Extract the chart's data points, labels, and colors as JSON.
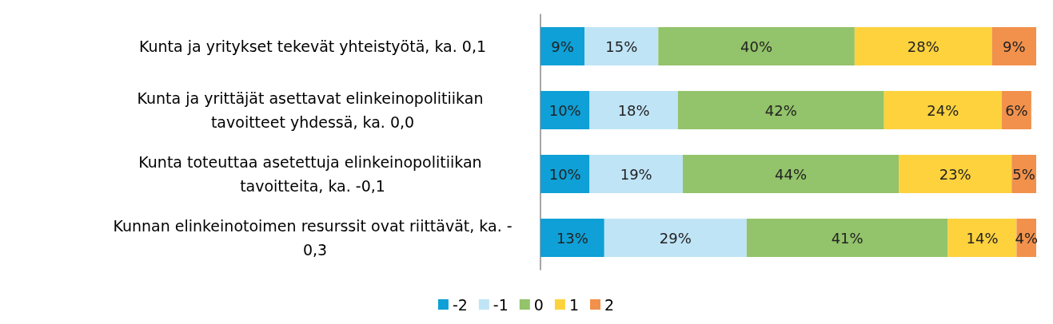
{
  "chart_data": {
    "type": "bar",
    "orientation": "horizontal",
    "stacked": true,
    "legend": "bottom",
    "tick_labels": "y",
    "categories": [
      "Kunta ja yritykset tekevät yhteistyötä, ka. 0,1",
      "Kunta ja yrittäjät asettavat elinkeinopolitiikan tavoitteet yhdessä, ka. 0,0",
      "Kunta toteuttaa asetettuja elinkeinopolitiikan tavoitteita, ka. -0,1",
      "Kunnan elinkeinotoimen resurssit ovat riittävät, ka. - 0,3"
    ],
    "series": [
      {
        "name": "-2",
        "color": "#0ea0d6",
        "values": [
          9,
          10,
          10,
          13
        ],
        "value_labels": [
          "9%",
          "10%",
          "10%",
          "13%"
        ]
      },
      {
        "name": "-1",
        "color": "#bfe4f6",
        "values": [
          15,
          18,
          19,
          29
        ],
        "value_labels": [
          "15%",
          "18%",
          "19%",
          "29%"
        ]
      },
      {
        "name": "0",
        "color": "#93c36a",
        "values": [
          40,
          42,
          44,
          41
        ],
        "value_labels": [
          "40%",
          "42%",
          "44%",
          "41%"
        ]
      },
      {
        "name": "1",
        "color": "#fdd23d",
        "values": [
          28,
          24,
          23,
          14
        ],
        "value_labels": [
          "28%",
          "24%",
          "23%",
          "14%"
        ]
      },
      {
        "name": "2",
        "color": "#f1914b",
        "values": [
          9,
          6,
          5,
          4
        ],
        "value_labels": [
          "9%",
          "6%",
          "5%",
          "4%"
        ]
      }
    ]
  }
}
